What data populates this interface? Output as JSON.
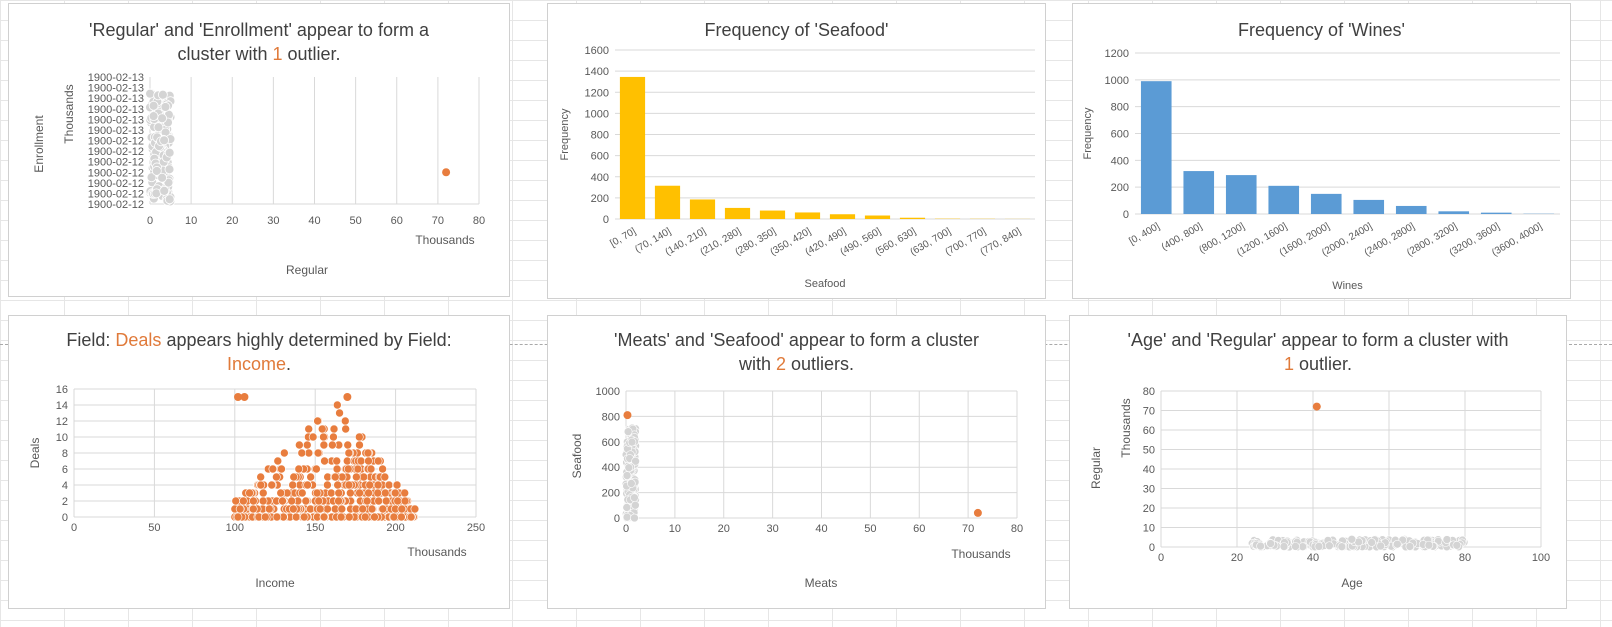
{
  "colors": {
    "orange": "#E87D3E",
    "gray": "#D4D4D4",
    "gold": "#FFC000",
    "blue": "#5B9BD5",
    "highlight": "#E07A3A"
  },
  "chart_data": [
    {
      "id": "c1",
      "type": "scatter",
      "title_parts": [
        "'Regular' and 'Enrollment' appear to form a",
        "cluster with ",
        "1",
        " outlier."
      ],
      "xlabel": "Regular",
      "ylabel": "Enrollment",
      "x_unit": "Thousands",
      "y_unit": "Thousands",
      "xlim": [
        0,
        80
      ],
      "x_ticks": [
        0,
        10,
        20,
        30,
        40,
        50,
        60,
        70,
        80
      ],
      "y_ticks": [
        "1900-02-12",
        "1900-02-12",
        "1900-02-12",
        "1900-02-12",
        "1900-02-12",
        "1900-02-12",
        "1900-02-12",
        "1900-02-13",
        "1900-02-13",
        "1900-02-13",
        "1900-02-13",
        "1900-02-13",
        "1900-02-13"
      ],
      "cluster": {
        "x_range": [
          0,
          5
        ],
        "color": "gray"
      },
      "outliers": [
        {
          "x": 72,
          "y": 0.25
        }
      ]
    },
    {
      "id": "c2",
      "type": "bar",
      "title": "Frequency of 'Seafood'",
      "xlabel": "Seafood",
      "ylabel": "Frequency",
      "ylim": [
        0,
        1600
      ],
      "y_ticks": [
        0,
        200,
        400,
        600,
        800,
        1000,
        1200,
        1400,
        1600
      ],
      "categories": [
        "[0, 70]",
        "(70, 140]",
        "(140, 210]",
        "(210, 280]",
        "(280, 350]",
        "(350, 420]",
        "(420, 490]",
        "(490, 560]",
        "(560, 630]",
        "(630, 700]",
        "(700, 770]",
        "(770, 840]"
      ],
      "values": [
        1345,
        315,
        185,
        105,
        80,
        62,
        45,
        33,
        12,
        3,
        2,
        1
      ],
      "color": "gold"
    },
    {
      "id": "c3",
      "type": "bar",
      "title": "Frequency of 'Wines'",
      "xlabel": "Wines",
      "ylabel": "Frequency",
      "ylim": [
        0,
        1200
      ],
      "y_ticks": [
        0,
        200,
        400,
        600,
        800,
        1000,
        1200
      ],
      "categories": [
        "[0, 400]",
        "(400, 800]",
        "(800, 1200]",
        "(1200, 1600]",
        "(1600, 2000]",
        "(2000, 2400]",
        "(2400, 2800]",
        "(2800, 3200]",
        "(3200, 3600]",
        "(3600, 4000]"
      ],
      "values": [
        990,
        320,
        290,
        210,
        150,
        105,
        60,
        20,
        10,
        2
      ],
      "color": "blue"
    },
    {
      "id": "c4",
      "type": "scatter",
      "title_parts": [
        "Field: ",
        "Deals",
        " appears highly determined by Field:",
        "Income",
        "."
      ],
      "xlabel": "Income",
      "ylabel": "Deals",
      "x_unit": "Thousands",
      "xlim": [
        0,
        250
      ],
      "ylim": [
        0,
        16
      ],
      "x_ticks": [
        0,
        50,
        100,
        150,
        200,
        250
      ],
      "y_ticks": [
        0,
        2,
        4,
        6,
        8,
        10,
        12,
        14,
        16
      ],
      "envelope": {
        "x_range": [
          100,
          212
        ],
        "peak_x": 165,
        "peak_y": 13
      },
      "color": "orange"
    },
    {
      "id": "c5",
      "type": "scatter",
      "title_parts": [
        "'Meats' and 'Seafood' appear to form a cluster",
        "with ",
        "2",
        " outliers."
      ],
      "xlabel": "Meats",
      "ylabel": "Seafood",
      "x_unit": "Thousands",
      "xlim": [
        0,
        80
      ],
      "ylim": [
        0,
        1000
      ],
      "x_ticks": [
        0,
        10,
        20,
        30,
        40,
        50,
        60,
        70,
        80
      ],
      "y_ticks": [
        0,
        200,
        400,
        600,
        800,
        1000
      ],
      "cluster": {
        "x_range": [
          0,
          2
        ],
        "y_range": [
          0,
          720
        ],
        "color": "gray"
      },
      "outliers": [
        {
          "x": 0.3,
          "y": 810
        },
        {
          "x": 72,
          "y": 40
        }
      ]
    },
    {
      "id": "c6",
      "type": "scatter",
      "title_parts": [
        "'Age' and 'Regular' appear to form a cluster with",
        "1",
        " outlier."
      ],
      "xlabel": "Age",
      "ylabel": "Regular",
      "y_unit": "Thousands",
      "xlim": [
        0,
        100
      ],
      "ylim": [
        0,
        80
      ],
      "x_ticks": [
        0,
        20,
        40,
        60,
        80,
        100
      ],
      "y_ticks": [
        0,
        10,
        20,
        30,
        40,
        50,
        60,
        70,
        80
      ],
      "cluster": {
        "x_range": [
          24,
          80
        ],
        "y_range": [
          0,
          4
        ],
        "color": "gray"
      },
      "outliers": [
        {
          "x": 41,
          "y": 72
        }
      ]
    }
  ]
}
